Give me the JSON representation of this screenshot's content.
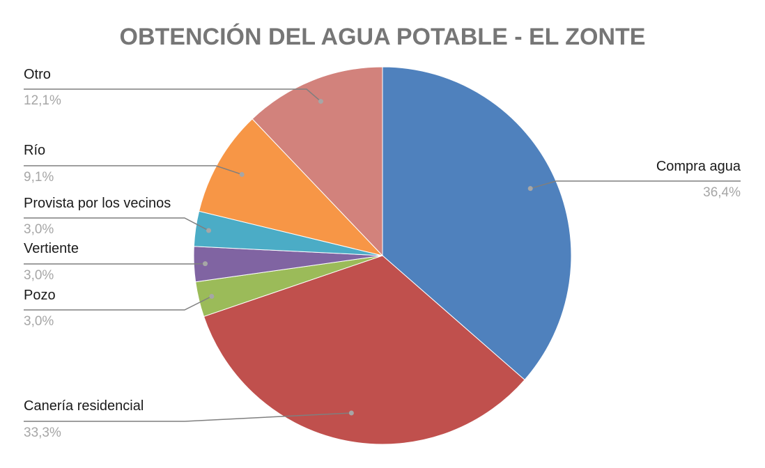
{
  "chart_data": {
    "type": "pie",
    "title": "OBTENCIÓN DEL AGUA POTABLE - EL ZONTE",
    "slices": [
      {
        "label": "Compra agua",
        "value": 36.4,
        "display": "36,4%",
        "color": "#4F81BD"
      },
      {
        "label": "Canería residencial",
        "value": 33.3,
        "display": "33,3%",
        "color": "#C0504D"
      },
      {
        "label": "Pozo",
        "value": 3.0,
        "display": "3,0%",
        "color": "#9BBB59"
      },
      {
        "label": "Vertiente",
        "value": 3.0,
        "display": "3,0%",
        "color": "#8064A2"
      },
      {
        "label": "Provista por los vecinos",
        "value": 3.0,
        "display": "3,0%",
        "color": "#4BACC6"
      },
      {
        "label": "Río",
        "value": 9.1,
        "display": "9,1%",
        "color": "#F79646"
      },
      {
        "label": "Otro",
        "value": 12.1,
        "display": "12,1%",
        "color": "#D2827C"
      }
    ],
    "label_color": "#1a1a1a",
    "value_color": "#a6a6a6",
    "title_color": "#767676",
    "leader_color": "#7f7f7f"
  }
}
